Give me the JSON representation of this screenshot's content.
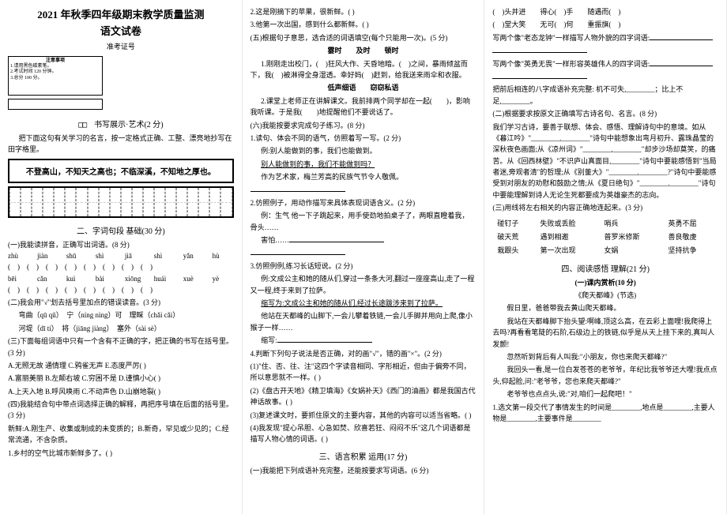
{
  "header": {
    "title_main": "2021 年秋季四年级期末教学质量监测",
    "title_sub": "语文试卷",
    "exam_num_label": "准考证号"
  },
  "notice": {
    "heading": "注意事项",
    "l1": "1.请用黑色碳素笔。",
    "l2": "2.考试时间 120 分钟。",
    "l3": "3.总分 100 分。"
  },
  "sec1": {
    "head": "书写展示·艺术(2 分)",
    "intro": "把下面这句有关学习的名言，按一定格式正确、工整、漂亮地抄写在田字格里。",
    "quote": "不登高山，不知天之高也；不临深溪，不知地之厚也。"
  },
  "sec2": {
    "head": "二、字词句段 基础(30 分)",
    "p1": "(一)我能读拼音，正确写出词语。(8 分)",
    "py_r1": [
      "zhù",
      "jiàn",
      "shū",
      "shì",
      "jiā",
      "shì",
      "yǎn",
      "hù"
    ],
    "py_r2": [
      "bēi",
      "cǎn",
      "kuì",
      "bài",
      "xiōng",
      "huái",
      "xuè",
      "yè"
    ],
    "p2": "(二)我会用\"√\"划去括号里加点的错误读音。(3 分)",
    "p2a": "弯曲（qū qǔ）　宁（níng nìng）可　理睬（chǎi cǎi）",
    "p2b": "河堤（dī tí）　将（jiāng jiàng）　塞外（sài sè）",
    "p3": "(三)下面每组词语中只有一个含有不正确的字，把正确的书写在括号里。(3 分)",
    "p3a": "A.无照无故 通情理 C.鸦雀无声 E.态度严厉(  )",
    "p3b": "A.富丽美丽 B.左颠右坡 C.穷困不是 D.谨慎小心(  )",
    "p3c": "A.上天入地 B.呼风唤雨 C.不动声色 D.山崩地裂(  )",
    "p4": "(四)我能结合句中带点词选择正确的解释，再把序号填在后面的括号里。(3 分)",
    "p4a": "新鲜:A.刚生产、收集或制成的未变质的；B.新奇，罕见或少见的；C.经常流通，不含杂质。",
    "p4l1": "1.乡村的空气比城市新鲜多了。(  )"
  },
  "col2": {
    "l1": "2.这是刚摘下的苹果，很新鲜。(  )",
    "l2": "3.他第一次出国，感到什么都新鲜。(  )",
    "p5": "(五)根据句子意思，选合适的词语填空(每个只能用一次)。(5 分)",
    "p5h": "霎时　　及时　　顿时",
    "p5a": "1.刚刚走出校门，(　)狂风大作、天昏地暗。(　)之间，暴雨倾盆而下，我(　)被淋得全身湿透。幸好妈(　)赶到，给我送来雨伞和衣服。",
    "p5h2": "低声细语　　窃窃私语",
    "p5b": "2.课堂上老师正在讲解课文。我前排两个同学却在一起(　　)，影响我听课。于是我(　　)地提醒他们不要说话了。",
    "p6": "(六)我能按要求完成句子练习。(8 分)",
    "p6a": "1.读句、体会不同的语气，仿照着写一写。(2 分)",
    "p6a1": "例:别人能做到的事，我们也能做到。",
    "p6a2": "别人能做到的事，我们不能做到吗？",
    "p6a3": "作为艺术家，梅兰芳高的民族气节令人敬佩。",
    "p6b": "2.仿照例子，用动作描写来具体表现词语含义。(2 分)",
    "p6b1": "例：生气 他一下子跳起来，用手使劲地拍桌子了，两眼直瞪着我，骨头……",
    "p6b2": "害怕……",
    "p6c": "3.仿照例例,练习长话短说。(2 分)",
    "p6c1": "例:文成公主和她的随从们,穿过一条条大河,翻过一座座高山,走了一程又一程,终于来到了拉萨。",
    "p6c2": "缩写为:文成公主和她的随从们,经过长途跋涉来到了拉萨。",
    "p6c3": "他站在天都峰的山脚下,一会儿攀着铁链,一会儿手脚并用向上爬,像小猴子一样……",
    "p6c4": "缩写:",
    "p7": "4.判断下列句子说法是否正确，对的画\"√\"，错的画\"×\"。(2 分)",
    "p7a": "(1)\"住、否、往、注\"这四个字读音相同、字形相近，但由于偏旁不同，所以意思就不一样。(  )",
    "p7b": "(2)《盘古开天地》《精卫填海》《女娲补天》《西门的油画》都是我国古代神话故事。(  )",
    "p7c": "(3)复述课文时，要抓住原文的主要内容，其他的内容可以适当省略。(  )",
    "p7d": "(4)我发现\"提心吊胆、心急如焚、欣喜若狂、闷闷不乐\"这几个词语都是描写人物心情的词语。(  )",
    "sec3": "三、语言积累 运用(17 分)",
    "p8": "(一)我能把下列成语补充完整，还能按要求写词语。(6 分)"
  },
  "col3": {
    "idiom_r1": "(　)头并进　　得心(　)手　　随遇而(　)",
    "idiom_r2": "(　)堂大笑　　无可(　)何　　重振旗(　)",
    "p9a": "写两个像\"老态龙钟\"一样描写人物外貌的四字词语:",
    "p9b": "写两个像\"英勇无畏\"一样形容英雄伟人的四字词语:",
    "p10": "把前后相连的八字成语补充完整: 机不可失,________；比上不足,________。",
    "p11": "(二)根据要求按原文正确填写古诗名句、名言。(8 分)",
    "p11a": "我们学习古诗，要善于联想、体会、感悟、理解诗句中的意境。如从《暮江吟》\"________,________\"诗句中能想象出弯月初升、露珠晶莹的深秋夜色画面;从《凉州词》\"________,________\"却步沙场却莫笑，的痛苦。从《回西林壁》\"不识庐山真面目,________\"诗句中要能感悟到\"当局者迷,旁观者清\"的哲理;从《别董大》\"________,________?\"诗句中要能感受到对朋友的劝慰和鼓励之情;从《夏日绝句》\"________,________\"诗句中要能理解到诗人无论生死都要成为英雄豪杰的志向。",
    "p12": "(三)用线将左右相关的内容正确地连起来。(3 分)",
    "match": {
      "r1": [
        "碰钉子",
        "失败或丢脸",
        "哨兵",
        "英勇不屈"
      ],
      "r2": [
        "破天荒",
        "遇到相邀",
        "普罗米修斯",
        "善良敬虔"
      ],
      "r3": [
        "栽跟头",
        "第一次出现",
        "女娲",
        "坚持抗争"
      ]
    },
    "sec4": "四、阅读感悟 理解(21 分)",
    "p13": "(一)课内赏析(10 分)",
    "p13t": "《爬天都峰》(节选)",
    "p13a": "　　假日里，爸爸带我去黄山爬天都峰。",
    "p13b": "　　我站在天都峰脚下抬头望:啊峰,顶这么高，在云彩上面哩!我爬得上去吗?再看看笔陡的石阶,石级边上的铁链,似乎是从天上挂下来的,真叫人发颤!",
    "p13c": "　　忽然听到背后有人叫我:\"小朋友，你也来爬天都峰?\"",
    "p13d": "　　我回头一看,是一位白发苍苍的老爷爷，年纪比我爷爷还大哩!我点点头,仰起脸,问:\"老爷爷，您也来爬天都峰?\"",
    "p13e": "　　老爷爷也点点头,说:\"对,咱们一起爬吧！\"",
    "q1": "1.选文第一段交代了事情发生的时间是________,地点是________,主要人物是________,主要事件是________"
  }
}
